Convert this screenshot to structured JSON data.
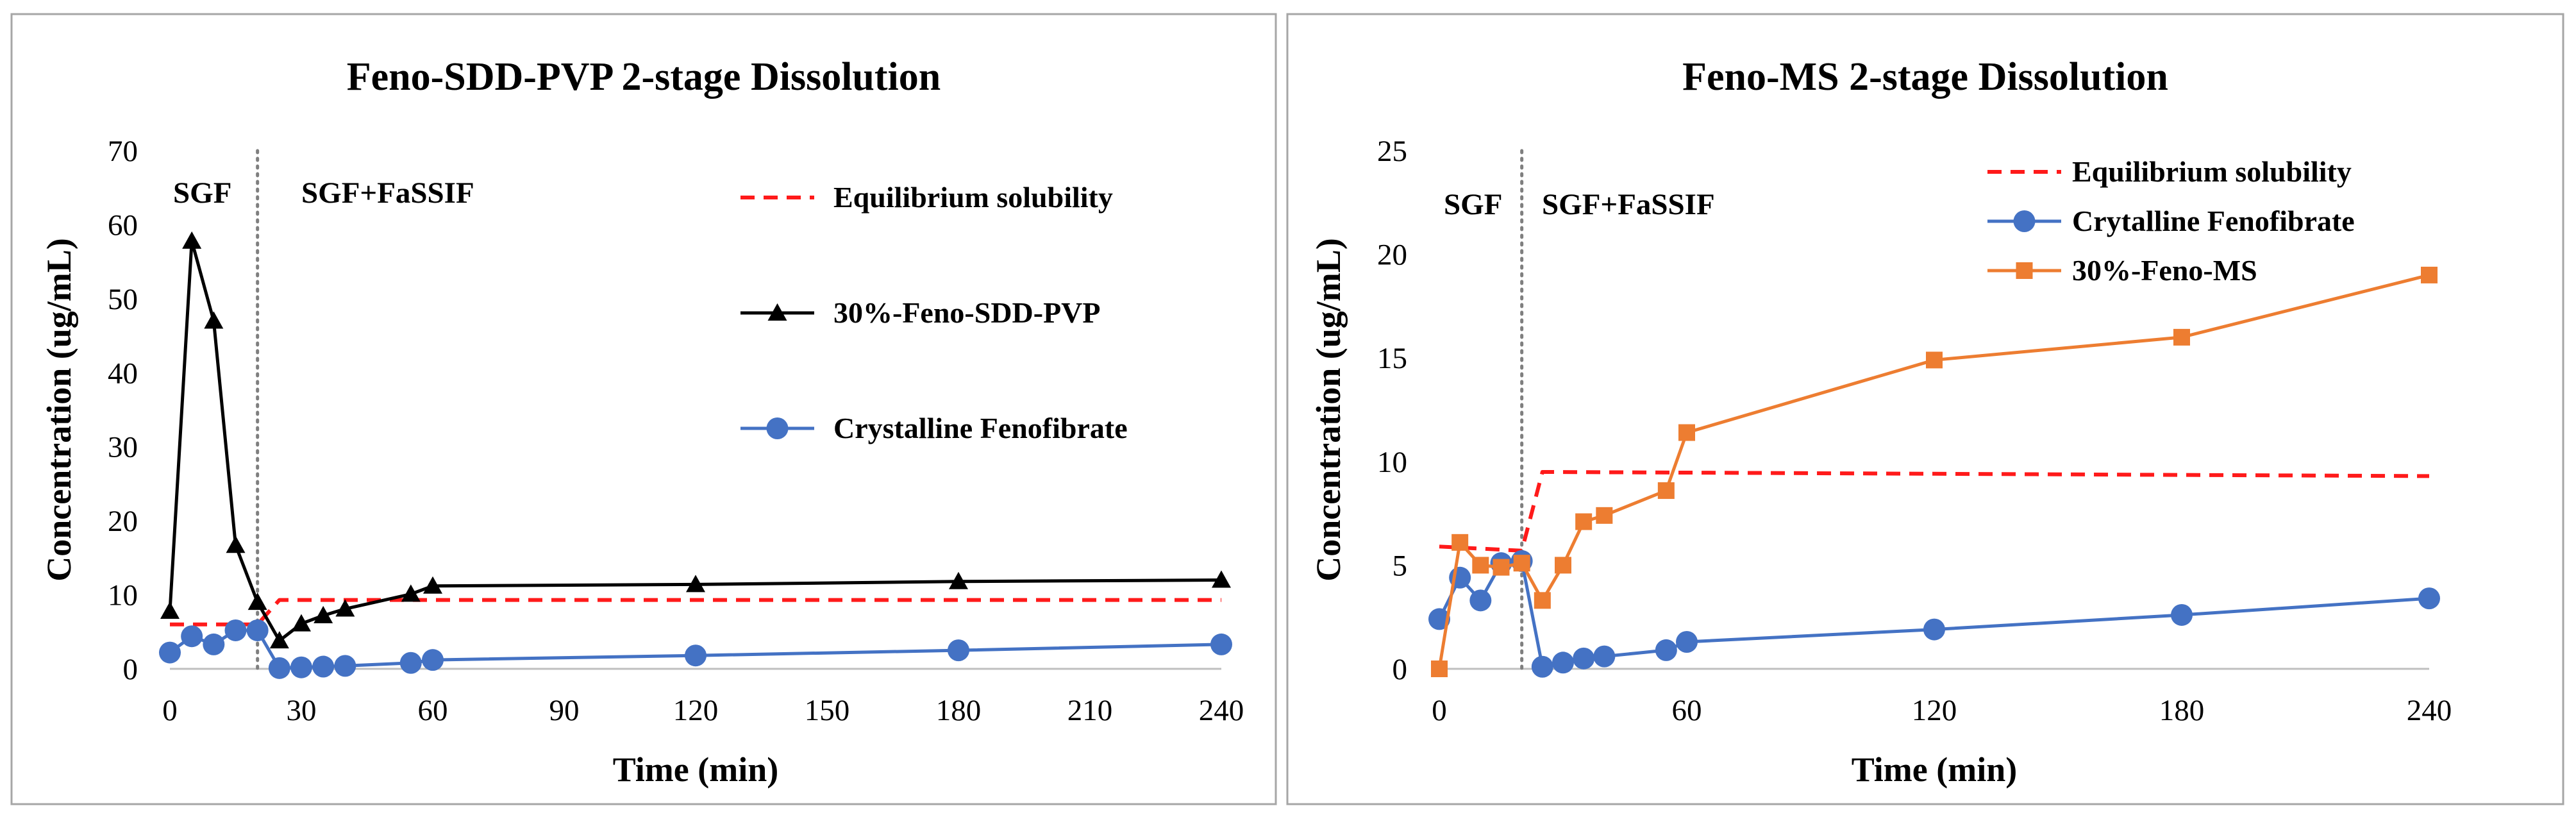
{
  "colors": {
    "equilibrium": "#ff1a1a",
    "black_series": "#000000",
    "blue_series": "#4472c4",
    "orange_series": "#ed7d31",
    "divider": "#7f7f7f",
    "panel_border": "#a6a6a6"
  },
  "chart_data": [
    {
      "type": "line",
      "title": "Feno-SDD-PVP 2-stage Dissolution",
      "xlabel": "Time (min)",
      "ylabel": "Concentration (ug/mL)",
      "xlim": [
        0,
        240
      ],
      "ylim": [
        0,
        70
      ],
      "xticks": [
        0,
        30,
        60,
        90,
        120,
        150,
        180,
        210,
        240
      ],
      "yticks": [
        0,
        10,
        20,
        30,
        40,
        50,
        60,
        70
      ],
      "grid": false,
      "legend_position": "top-right",
      "stage_divider_x": 20,
      "stage_labels": [
        "SGF",
        "SGF+FaSSIF"
      ],
      "series": [
        {
          "name": "Equilibrium solubility",
          "style": "dashed",
          "marker": "none",
          "color_key": "equilibrium",
          "x": [
            0,
            20,
            25,
            240
          ],
          "y": [
            6.0,
            6.0,
            9.3,
            9.3
          ]
        },
        {
          "name": "30%-Feno-SDD-PVP",
          "style": "solid",
          "marker": "triangle",
          "color_key": "black_series",
          "x": [
            0,
            5,
            10,
            15,
            20,
            25,
            30,
            35,
            40,
            55,
            60,
            120,
            180,
            240
          ],
          "y": [
            7.8,
            57.8,
            47.0,
            16.7,
            9.0,
            3.8,
            6.1,
            7.2,
            8.1,
            10.1,
            11.2,
            11.4,
            11.8,
            12.0
          ]
        },
        {
          "name": "Crystalline Fenofibrate",
          "style": "solid",
          "marker": "circle",
          "color_key": "blue_series",
          "x": [
            0,
            5,
            10,
            15,
            20,
            25,
            30,
            35,
            40,
            55,
            60,
            120,
            180,
            240
          ],
          "y": [
            2.2,
            4.4,
            3.3,
            5.2,
            5.2,
            0.1,
            0.2,
            0.3,
            0.4,
            0.8,
            1.2,
            1.8,
            2.5,
            3.3
          ]
        }
      ]
    },
    {
      "type": "line",
      "title": "Feno-MS 2-stage Dissolution",
      "xlabel": "Time (min)",
      "ylabel": "Concentration (ug/mL)",
      "xlim": [
        0,
        240
      ],
      "ylim": [
        0,
        25
      ],
      "xticks": [
        0,
        60,
        120,
        180,
        240
      ],
      "yticks": [
        0,
        5,
        10,
        15,
        20,
        25
      ],
      "grid": false,
      "legend_position": "top-right",
      "stage_divider_x": 20,
      "stage_labels": [
        "SGF",
        "SGF+FaSSIF"
      ],
      "series": [
        {
          "name": "Equilibrium solubility",
          "style": "dashed",
          "marker": "none",
          "color_key": "equilibrium",
          "x": [
            0,
            20,
            25,
            240
          ],
          "y": [
            5.9,
            5.7,
            9.5,
            9.3
          ]
        },
        {
          "name": "Crytalline Fenofibrate",
          "style": "solid",
          "marker": "circle",
          "color_key": "blue_series",
          "x": [
            0,
            5,
            10,
            15,
            20,
            25,
            30,
            35,
            40,
            55,
            60,
            120,
            180,
            240
          ],
          "y": [
            2.4,
            4.4,
            3.3,
            5.1,
            5.2,
            0.1,
            0.3,
            0.5,
            0.6,
            0.9,
            1.3,
            1.9,
            2.6,
            3.4
          ]
        },
        {
          "name": "30%-Feno-MS",
          "style": "solid",
          "marker": "square",
          "color_key": "orange_series",
          "x": [
            0,
            5,
            10,
            15,
            20,
            25,
            30,
            35,
            40,
            55,
            60,
            120,
            180,
            240
          ],
          "y": [
            0.0,
            6.1,
            5.0,
            4.9,
            5.1,
            3.3,
            5.0,
            7.1,
            7.4,
            8.6,
            11.4,
            14.9,
            16.0,
            19.0
          ]
        }
      ]
    }
  ]
}
